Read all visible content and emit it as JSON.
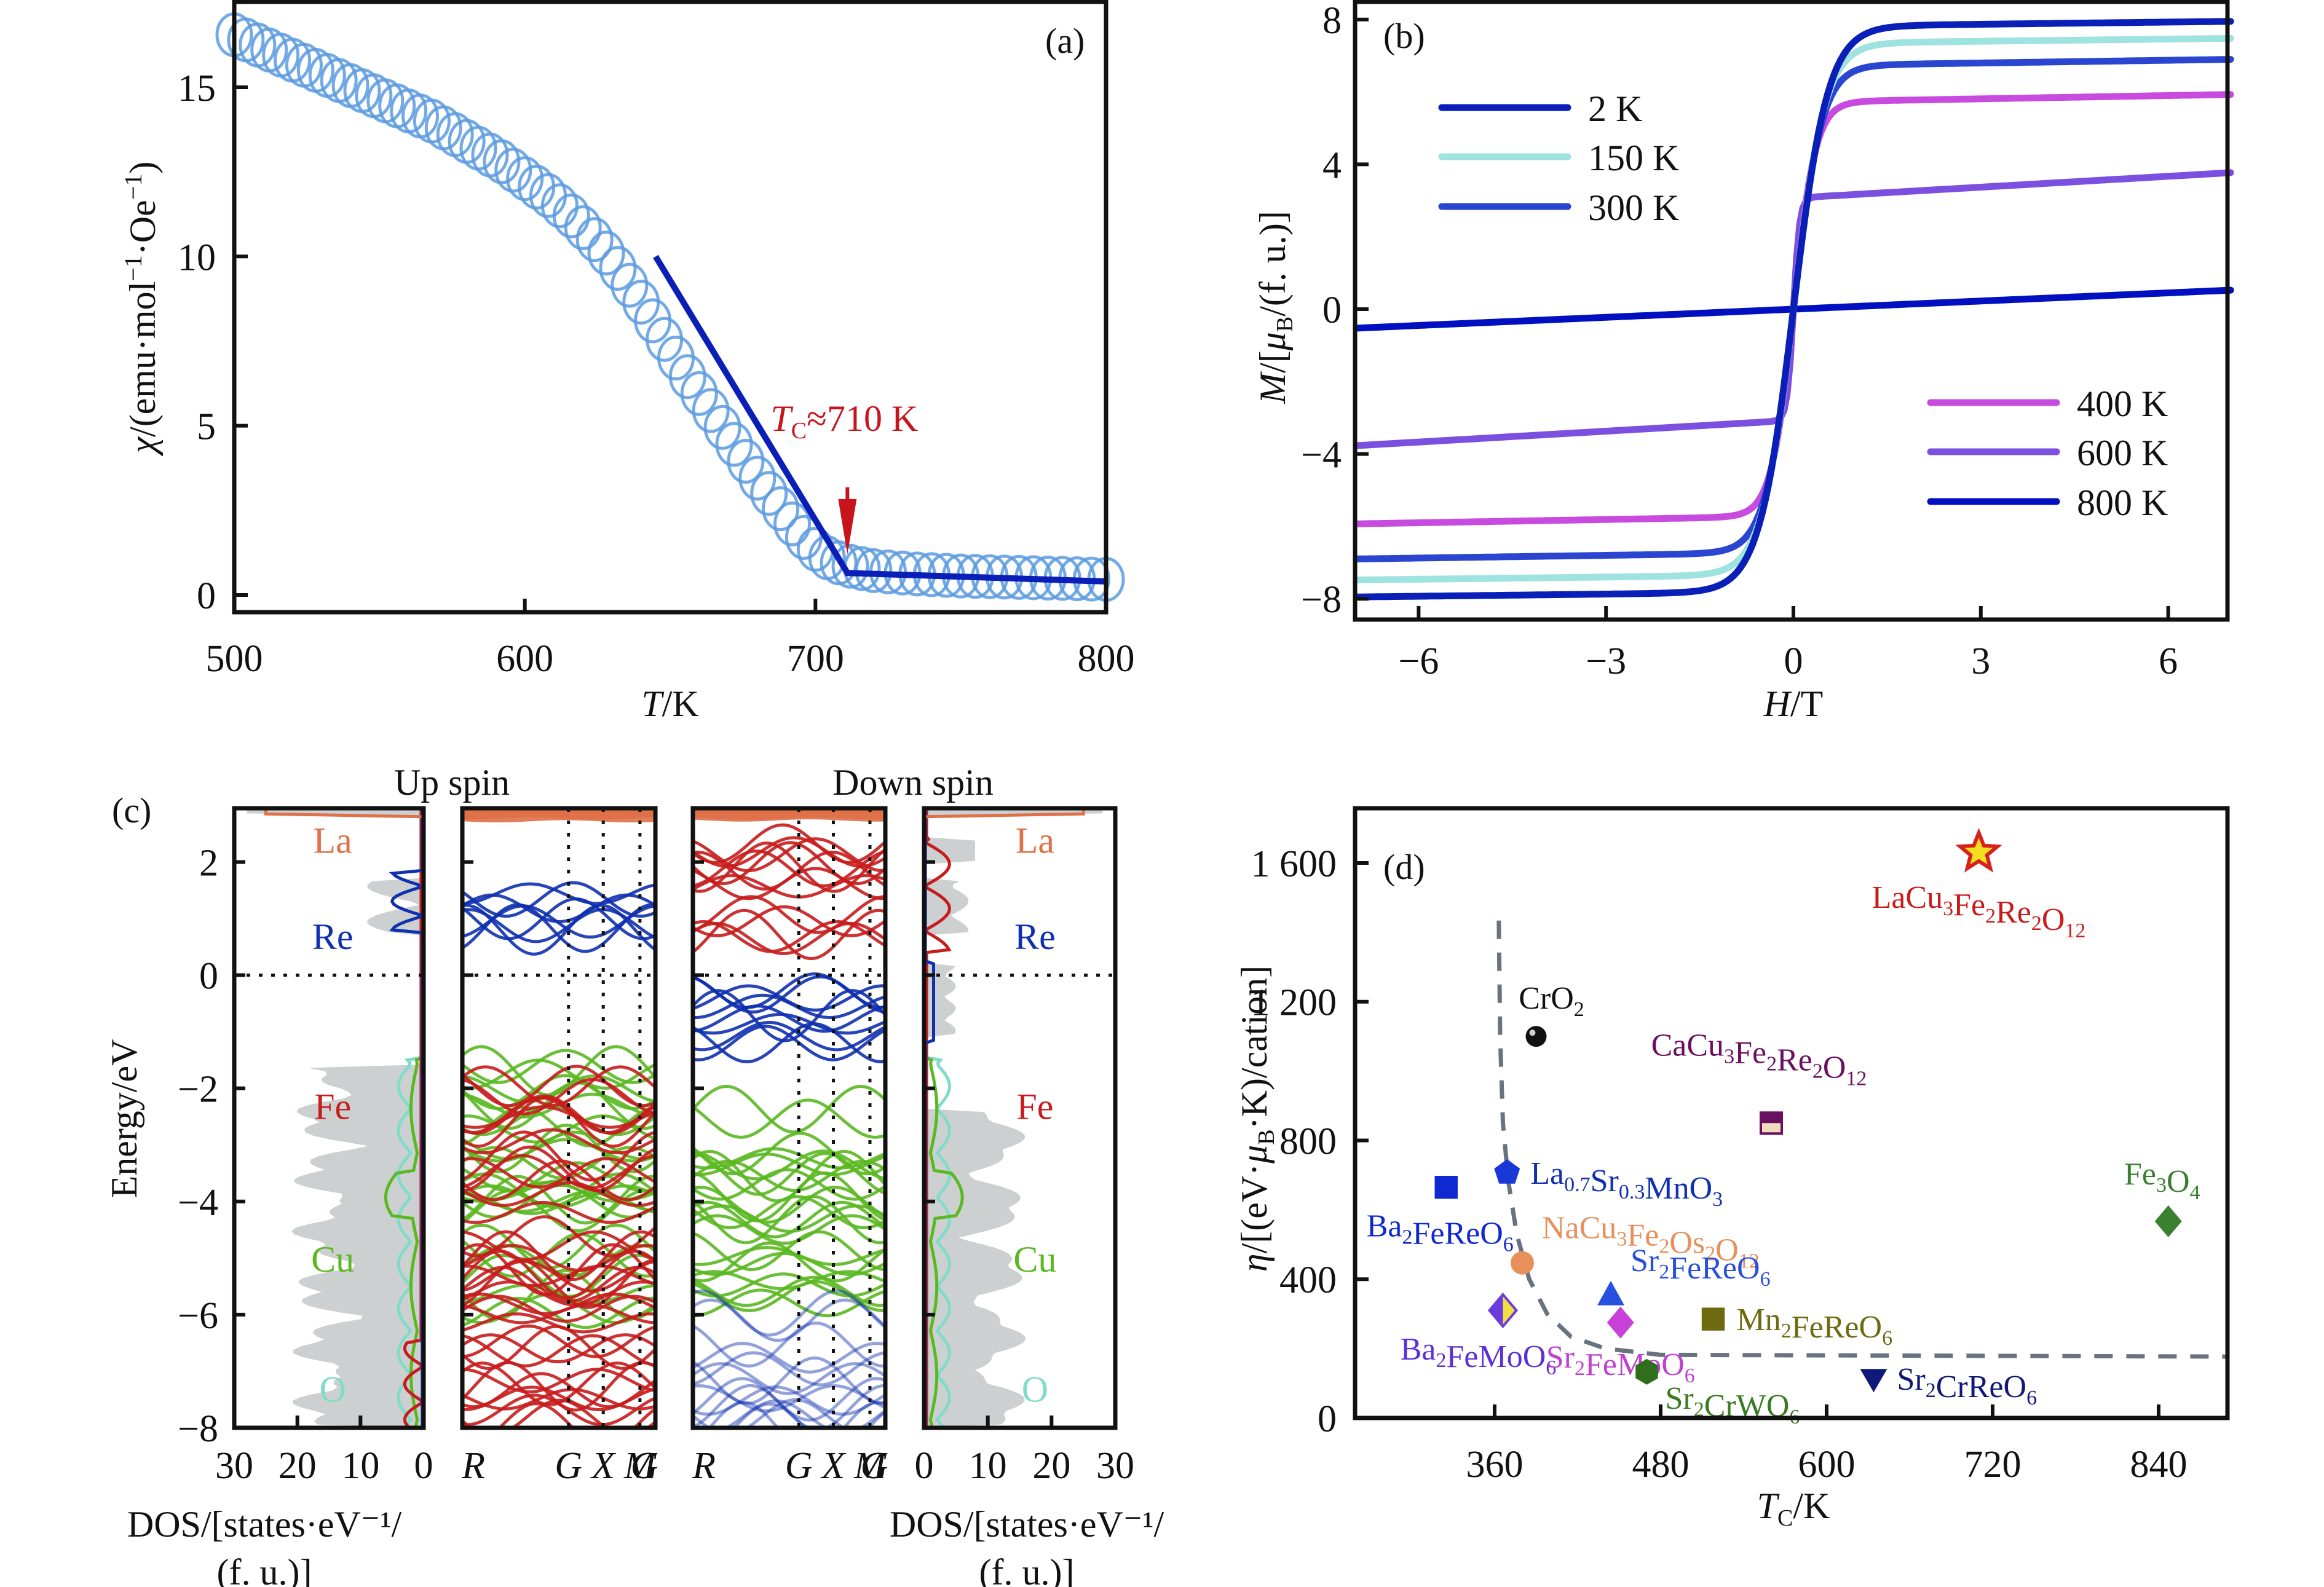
{
  "figure": {
    "panels": [
      "(a)",
      "(b)",
      "(c)",
      "(d)"
    ]
  },
  "chart_data": [
    {
      "id": "a",
      "type": "scatter",
      "panel_tag": "(a)",
      "title": "",
      "xlabel": "T/K",
      "ylabel": "χ/(emu·mol⁻¹·Oe⁻¹)",
      "xlim": [
        500,
        800
      ],
      "ylim": [
        -0.5,
        17.5
      ],
      "xticks": [
        500,
        600,
        700,
        800
      ],
      "yticks": [
        0,
        5,
        10,
        15
      ],
      "grid": false,
      "colors": {
        "data": "#5b9be0",
        "fit": "#0a1fb8",
        "annotation": "#c8141c"
      },
      "series": [
        {
          "name": "measured χ(T)",
          "marker": "open-circle",
          "x": [
            500,
            504,
            508,
            512,
            516,
            520,
            524,
            528,
            532,
            536,
            540,
            544,
            548,
            552,
            556,
            560,
            564,
            568,
            572,
            576,
            580,
            584,
            588,
            592,
            596,
            600,
            604,
            608,
            612,
            616,
            620,
            624,
            628,
            632,
            636,
            640,
            644,
            648,
            652,
            656,
            660,
            664,
            668,
            672,
            676,
            680,
            684,
            688,
            692,
            696,
            700,
            704,
            708,
            712,
            716,
            720,
            725,
            730,
            735,
            740,
            745,
            750,
            755,
            760,
            765,
            770,
            775,
            780,
            785,
            790,
            795,
            800
          ],
          "y": [
            16.55,
            16.4,
            16.25,
            16.1,
            15.95,
            15.8,
            15.65,
            15.5,
            15.35,
            15.2,
            15.05,
            14.9,
            14.75,
            14.6,
            14.45,
            14.3,
            14.15,
            14.0,
            13.8,
            13.6,
            13.4,
            13.2,
            13.0,
            12.8,
            12.55,
            12.3,
            12.05,
            11.8,
            11.5,
            11.2,
            10.85,
            10.5,
            10.1,
            9.65,
            9.15,
            8.65,
            8.1,
            7.55,
            7.0,
            6.45,
            5.95,
            5.45,
            4.95,
            4.45,
            3.95,
            3.45,
            3.0,
            2.55,
            2.1,
            1.7,
            1.35,
            1.1,
            0.95,
            0.85,
            0.78,
            0.72,
            0.68,
            0.65,
            0.62,
            0.6,
            0.58,
            0.56,
            0.55,
            0.54,
            0.53,
            0.52,
            0.51,
            0.5,
            0.49,
            0.48,
            0.47,
            0.46
          ]
        },
        {
          "name": "linear fit",
          "marker": "line",
          "x": [
            645,
            711,
            800
          ],
          "y": [
            10.0,
            0.65,
            0.4
          ]
        }
      ],
      "annotations": [
        {
          "text_main": "T",
          "text_sub": "C",
          "text_rest": "≈710 K",
          "arrow_x": 711,
          "arrow_from_y": 3.0,
          "arrow_to_y": 1.2
        }
      ]
    },
    {
      "id": "b",
      "type": "line",
      "panel_tag": "(b)",
      "xlabel": "H/T",
      "ylabel": "M/[μB/(f. u.)]",
      "xlim": [
        -7,
        7
      ],
      "ylim": [
        -8.5,
        8.5
      ],
      "xticks": [
        -6,
        -3,
        0,
        3,
        6
      ],
      "xtick_labels": [
        "−6",
        "−3",
        "0",
        "3",
        "6"
      ],
      "yticks": [
        -8,
        -4,
        0,
        4,
        8
      ],
      "ytick_labels": [
        "−8",
        "−4",
        "0",
        "4",
        "8"
      ],
      "grid": false,
      "legend": [
        {
          "group": "top-left",
          "entries": [
            "2 K",
            "150 K",
            "300 K"
          ]
        },
        {
          "group": "bottom-right",
          "entries": [
            "400 K",
            "600 K",
            "800 K"
          ]
        }
      ],
      "series": [
        {
          "name": "2 K",
          "color": "#0a1fb8",
          "Ms": 7.95,
          "slope": 0.02,
          "width": 0.55,
          "curve": "tanh"
        },
        {
          "name": "150 K",
          "color": "#9ee3e0",
          "Ms": 7.48,
          "slope": 0.02,
          "width": 0.5,
          "curve": "tanh"
        },
        {
          "name": "300 K",
          "color": "#2a45d0",
          "Ms": 6.9,
          "slope": 0.025,
          "width": 0.45,
          "curve": "tanh"
        },
        {
          "name": "400 K",
          "color": "#c84be0",
          "Ms": 5.93,
          "slope": 0.03,
          "width": 0.35,
          "curve": "tanh"
        },
        {
          "name": "600 K",
          "color": "#7b4fe0",
          "Ms": 3.77,
          "slope": 0.1,
          "width": 0.1,
          "curve": "tanh"
        },
        {
          "name": "800 K",
          "color": "#0010c0",
          "Ms": 0.0,
          "slope": 0.075,
          "width": 1.0,
          "curve": "linear"
        }
      ]
    },
    {
      "id": "c",
      "type": "line",
      "panel_tag": "(c)",
      "subtitles": [
        "Up spin",
        "Down spin"
      ],
      "ylabel": "Energy/eV",
      "ylim": [
        -8,
        2.95
      ],
      "yticks": [
        -8,
        -6,
        -4,
        -2,
        0,
        2
      ],
      "ytick_labels": [
        "−8",
        "−6",
        "−4",
        "−2",
        "0",
        "2"
      ],
      "dos_xlabel_line1": "DOS/[states·eV⁻¹/",
      "dos_xlabel_line2": "(f. u.)]",
      "dos_ticks_left": [
        "30",
        "20",
        "10",
        "0"
      ],
      "dos_ticks_right": [
        "0",
        "10",
        "20",
        "30"
      ],
      "dos_xlim": [
        0,
        30
      ],
      "kpath_labels": [
        "R",
        "G",
        "X",
        "M",
        "G"
      ],
      "kpath_positions": [
        0,
        0.55,
        0.73,
        0.92,
        1.0
      ],
      "element_labels": [
        {
          "name": "La",
          "color": "#e07048",
          "energy": 2.4
        },
        {
          "name": "Re",
          "color": "#1030b0",
          "energy": 0.7
        },
        {
          "name": "Fe",
          "color": "#c81c1c",
          "energy": -2.3
        },
        {
          "name": "Cu",
          "color": "#5ab820",
          "energy": -5.0
        },
        {
          "name": "O",
          "color": "#80dcc8",
          "energy": -7.3
        }
      ],
      "fermi_level": 0,
      "bands": {
        "up": [
          {
            "element": "La",
            "range": [
              2.8,
              2.95
            ]
          },
          {
            "element": "Re",
            "range": [
              0.75,
              1.8
            ]
          },
          {
            "element": "Cu",
            "range": [
              -6.0,
              -1.55
            ]
          },
          {
            "element": "Fe",
            "range": [
              -8.0,
              -1.9
            ]
          }
        ],
        "down": [
          {
            "element": "La",
            "range": [
              2.8,
              2.95
            ]
          },
          {
            "element": "Fe",
            "range": [
              0.4,
              2.4
            ]
          },
          {
            "element": "Re",
            "range": [
              -1.2,
              0.2
            ]
          },
          {
            "element": "Cu",
            "range": [
              -6.0,
              -2.35
            ]
          },
          {
            "element": "Re",
            "range": [
              -8.0,
              -5.9
            ]
          }
        ]
      }
    },
    {
      "id": "d",
      "type": "scatter",
      "panel_tag": "(d)",
      "xlabel": "TC/K",
      "ylabel": "η/[(eV·μB·K)/cation]",
      "xlim": [
        259,
        890
      ],
      "ylim": [
        0,
        1758
      ],
      "xticks": [
        360,
        480,
        600,
        720,
        840
      ],
      "yticks": [
        0,
        400,
        800,
        1200,
        1600
      ],
      "ytick_labels": [
        "0",
        "400",
        "800",
        "1 200",
        "1 600"
      ],
      "grid": false,
      "guide_curve": {
        "style": "dashed",
        "color": "#6a7280",
        "x": [
          363,
          364,
          366,
          370,
          376,
          385,
          398,
          415,
          440,
          480,
          890
        ],
        "y": [
          1434,
          1100,
          850,
          680,
          530,
          400,
          300,
          235,
          200,
          182,
          177
        ]
      },
      "points": [
        {
          "label": "LaCu3Fe2Re2O12",
          "formula": [
            [
              "La",
              ""
            ],
            [
              "Cu",
              "3"
            ],
            [
              "Fe",
              "2"
            ],
            [
              "Re",
              "2"
            ],
            [
              "O",
              "12"
            ]
          ],
          "x": 710,
          "y": 1630,
          "marker": "star",
          "color": "#d8201c",
          "fill2": "#f2e020",
          "label_color": "#c81c1c",
          "label_pos": "below"
        },
        {
          "label": "CrO2",
          "formula": [
            [
              "Cr",
              ""
            ],
            [
              "O",
              "2"
            ]
          ],
          "x": 390,
          "y": 1100,
          "marker": "sphere",
          "color": "#111111",
          "label_color": "#111111",
          "label_pos": "above"
        },
        {
          "label": "CaCu3Fe2Re2O12",
          "formula": [
            [
              "Ca",
              ""
            ],
            [
              "Cu",
              "3"
            ],
            [
              "Fe",
              "2"
            ],
            [
              "Re",
              "2"
            ],
            [
              "O",
              "12"
            ]
          ],
          "x": 560,
          "y": 850,
          "marker": "square-half",
          "color": "#6a1060",
          "fill2": "#f2dcc0",
          "label_color": "#6a1060",
          "label_pos": "above"
        },
        {
          "label": "La0.7Sr0.3MnO3",
          "formula": [
            [
              "La",
              "0.7"
            ],
            [
              "Sr",
              "0.3"
            ],
            [
              "Mn",
              ""
            ],
            [
              "O",
              "3"
            ]
          ],
          "x": 369,
          "y": 707,
          "marker": "pentagon",
          "color": "#1838d8",
          "label_color": "#1030b0",
          "label_pos": "right"
        },
        {
          "label": "Ba2FeReO6",
          "formula": [
            [
              "Ba",
              "2"
            ],
            [
              "Fe",
              ""
            ],
            [
              "Re",
              ""
            ],
            [
              "O",
              "6"
            ]
          ],
          "x": 325,
          "y": 665,
          "marker": "square",
          "color": "#1028d0",
          "label_color": "#1028d0",
          "label_pos": "below"
        },
        {
          "label": "Fe3O4",
          "formula": [
            [
              "Fe",
              "3"
            ],
            [
              "O",
              "4"
            ]
          ],
          "x": 847,
          "y": 567,
          "marker": "diamond",
          "color": "#3a8030",
          "label_color": "#3a8030",
          "label_pos": "above"
        },
        {
          "label": "NaCu3Fe2Os2O12",
          "formula": [
            [
              "Na",
              ""
            ],
            [
              "Cu",
              "3"
            ],
            [
              "Fe",
              "2"
            ],
            [
              "Os",
              "2"
            ],
            [
              "O",
              "12"
            ]
          ],
          "x": 380,
          "y": 447,
          "marker": "circle",
          "color": "#e8905c",
          "label_color": "#e8905c",
          "label_pos": "above-right"
        },
        {
          "label": "Sr2FeReO6",
          "formula": [
            [
              "Sr",
              "2"
            ],
            [
              "Fe",
              ""
            ],
            [
              "Re",
              ""
            ],
            [
              "O",
              "6"
            ]
          ],
          "x": 444,
          "y": 353,
          "marker": "triangle-up",
          "color": "#2850e0",
          "label_color": "#2850e0",
          "label_pos": "above-right"
        },
        {
          "label": "Ba2FeMoO6",
          "formula": [
            [
              "Ba",
              "2"
            ],
            [
              "Fe",
              ""
            ],
            [
              "Mo",
              ""
            ],
            [
              "O",
              "6"
            ]
          ],
          "x": 366,
          "y": 310,
          "marker": "diamond-half",
          "color": "#6a3ce0",
          "fill2": "#f0e040",
          "label_color": "#5a30d8",
          "label_pos": "below"
        },
        {
          "label": "Sr2FeMoO6",
          "formula": [
            [
              "Sr",
              "2"
            ],
            [
              "Fe",
              ""
            ],
            [
              "Mo",
              ""
            ],
            [
              "O",
              "6"
            ]
          ],
          "x": 451,
          "y": 275,
          "marker": "diamond",
          "color": "#c840d8",
          "label_color": "#c040d0",
          "label_pos": "below"
        },
        {
          "label": "Mn2FeReO6",
          "formula": [
            [
              "Mn",
              "2"
            ],
            [
              "Fe",
              ""
            ],
            [
              "Re",
              ""
            ],
            [
              "O",
              "6"
            ]
          ],
          "x": 518,
          "y": 285,
          "marker": "square",
          "color": "#6e6a10",
          "label_color": "#6e6a10",
          "label_pos": "right"
        },
        {
          "label": "Sr2CrWO6",
          "formula": [
            [
              "Sr",
              "2"
            ],
            [
              "Cr",
              ""
            ],
            [
              "W",
              ""
            ],
            [
              "O",
              "6"
            ]
          ],
          "x": 470,
          "y": 133,
          "marker": "hexagon",
          "color": "#2e6e1c",
          "label_color": "#3a7a20",
          "label_pos": "below-right"
        },
        {
          "label": "Sr2CrReO6",
          "formula": [
            [
              "Sr",
              "2"
            ],
            [
              "Cr",
              ""
            ],
            [
              "Re",
              ""
            ],
            [
              "O",
              "6"
            ]
          ],
          "x": 634,
          "y": 113,
          "marker": "triangle-down",
          "color": "#101878",
          "label_color": "#101878",
          "label_pos": "right"
        }
      ]
    }
  ]
}
